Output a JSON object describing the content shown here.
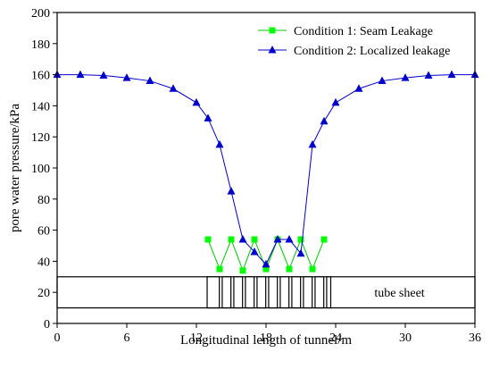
{
  "chart_data": {
    "type": "line",
    "xlabel": "Longitudinal length of tunnel/m",
    "ylabel": "pore water pressure/kPa",
    "xlim": [
      0,
      36
    ],
    "ylim": [
      0,
      200
    ],
    "x_ticks": [
      0,
      6,
      12,
      18,
      24,
      30,
      36
    ],
    "y_ticks": [
      0,
      20,
      40,
      60,
      80,
      100,
      120,
      140,
      160,
      180,
      200
    ],
    "grid": false,
    "legend_position": "top-right",
    "series": [
      {
        "name": "Condition 1: Seam Leakage",
        "color": "#00ff00",
        "line_color": "#00cc00",
        "marker": "square",
        "x": [
          13,
          14,
          15,
          16,
          17,
          18,
          19,
          20,
          21,
          22,
          23
        ],
        "y": [
          54,
          35,
          54,
          34,
          54,
          35,
          54,
          35,
          54,
          35,
          54
        ]
      },
      {
        "name": "Condition 2: Localized leakage",
        "color": "#0000cc",
        "line_color": "#0000cc",
        "marker": "triangle",
        "x": [
          0,
          2,
          4,
          6,
          8,
          10,
          12,
          13,
          14,
          15,
          16,
          17,
          18,
          19,
          20,
          21,
          22,
          23,
          24,
          26,
          28,
          30,
          32,
          34,
          36
        ],
        "y": [
          160,
          160,
          159.5,
          158,
          156,
          151,
          142,
          132,
          115,
          85,
          54,
          46,
          38,
          54,
          54,
          45,
          115,
          130,
          142,
          151,
          156,
          158,
          159.5,
          160,
          160
        ]
      }
    ],
    "annotation": {
      "label": "tube sheet",
      "y_range": [
        10,
        30
      ],
      "x_range": [
        0,
        36
      ],
      "segment_boundaries": [
        12.8,
        14.1,
        15.1,
        16.1,
        17.1,
        18.1,
        19.1,
        20.1,
        21.1,
        22.1,
        23.1,
        23.7
      ]
    }
  }
}
